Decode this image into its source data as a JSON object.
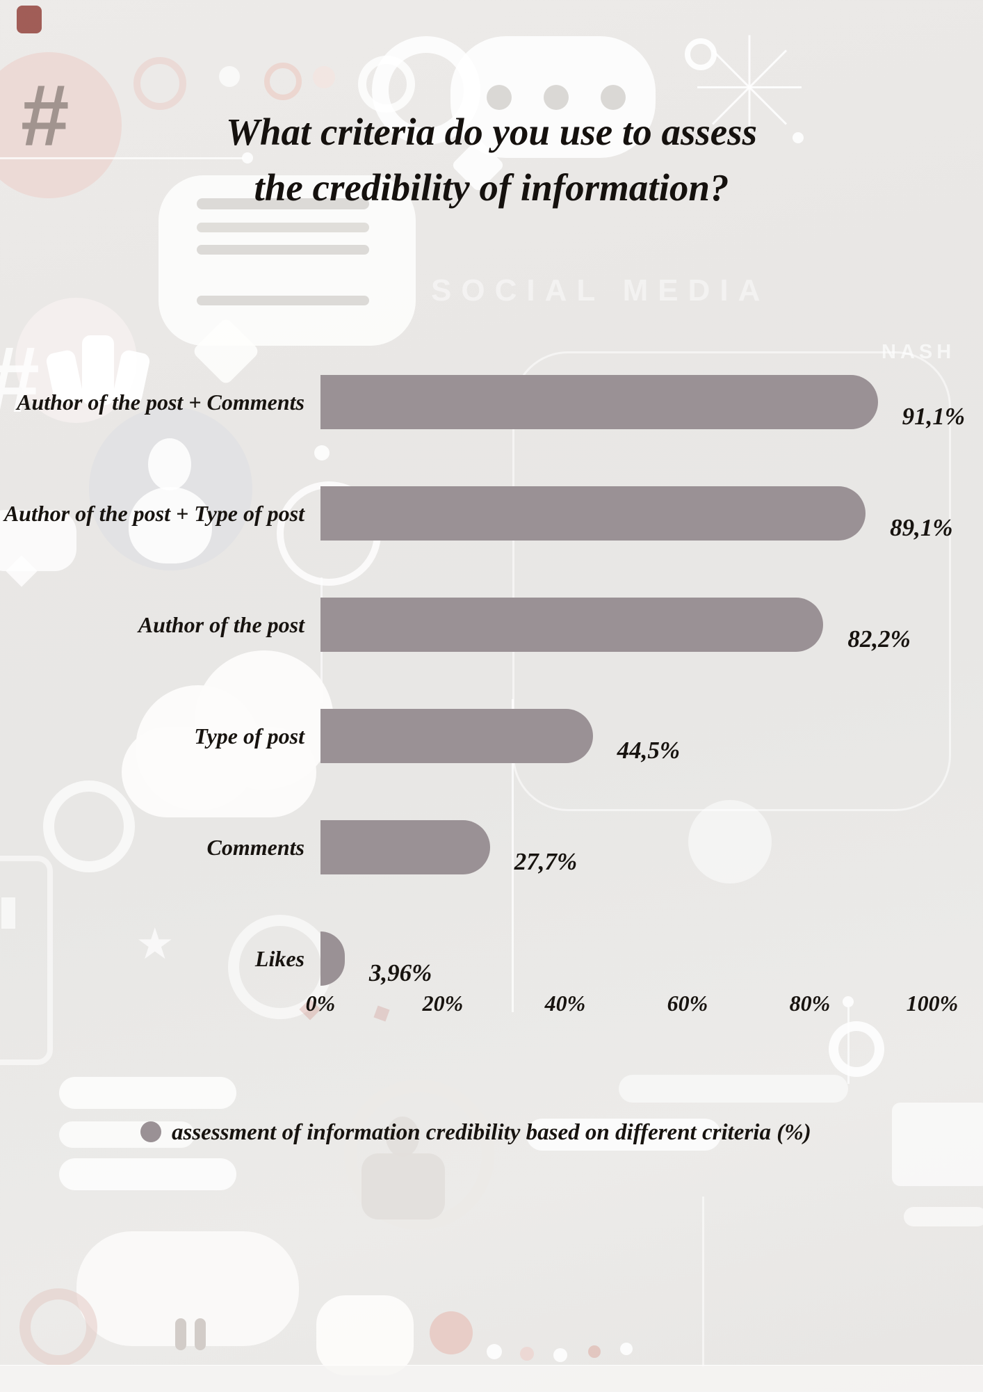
{
  "title": {
    "line1": "What criteria do you use to assess",
    "line2": "the credibility of information?"
  },
  "background_texts": {
    "social_media": "SOCIAL MEDIA",
    "nash": "NASH"
  },
  "chart_data": {
    "type": "bar",
    "orientation": "horizontal",
    "title": "What criteria do you use to assess the credibility of information?",
    "categories": [
      "Author of the post + Comments",
      "Author of the post + Type of post",
      "Author of the post",
      "Type of post",
      "Comments",
      "Likes"
    ],
    "values": [
      91.1,
      89.1,
      82.2,
      44.5,
      27.7,
      3.96
    ],
    "value_labels": [
      "91,1%",
      "89,1%",
      "82,2%",
      "44,5%",
      "27,7%",
      "3,96%"
    ],
    "x_axis_ticks": [
      "0%",
      "20%",
      "40%",
      "60%",
      "80%",
      "100%"
    ],
    "x_axis_tick_values": [
      0,
      20,
      40,
      60,
      80,
      100
    ],
    "xlim": [
      0,
      100
    ],
    "grid": false,
    "legend_position": "bottom-left",
    "bar_color": "#9a9195",
    "text_color": "#17130f",
    "legend": "assessment of information credibility based on different criteria (%)"
  },
  "legend": {
    "label": "assessment of information credibility based on different criteria (%)",
    "dot_color": "#9a9195"
  }
}
